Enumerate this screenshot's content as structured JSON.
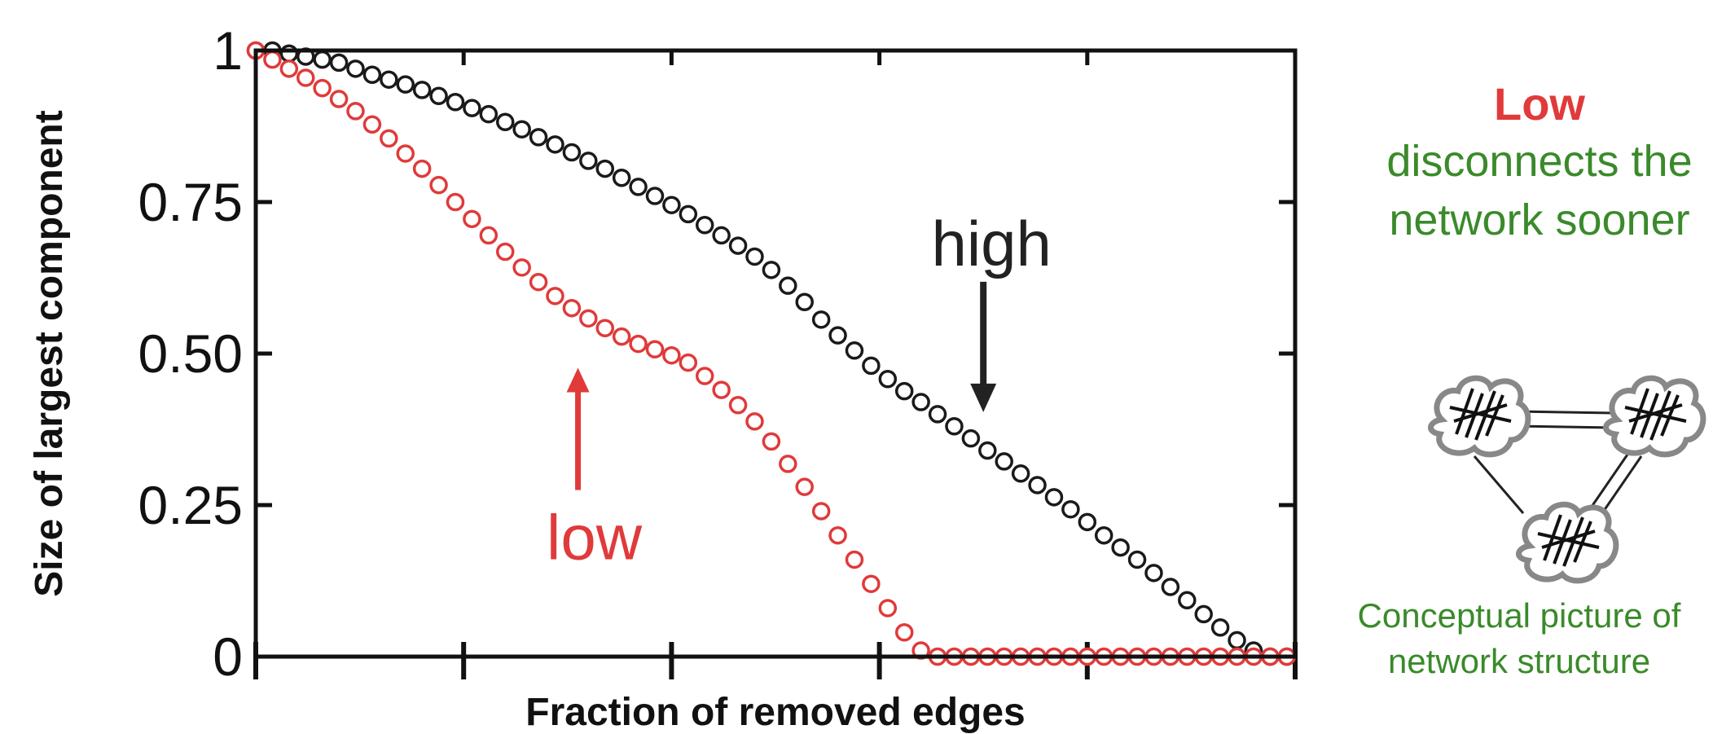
{
  "chart_data": {
    "type": "scatter",
    "xlabel": "Fraction of removed edges",
    "ylabel": "Size of largest component",
    "xlim": [
      0,
      1
    ],
    "ylim": [
      0,
      1
    ],
    "y_tick_labels": [
      "0",
      "0.25",
      "0.50",
      "0.75",
      "1"
    ],
    "y_ticks": [
      0,
      0.25,
      0.5,
      0.75,
      1
    ],
    "x_ticks": [
      0,
      0.2,
      0.4,
      0.6,
      0.8,
      1
    ],
    "x_tick_labels_shown": false,
    "grid": false,
    "marker": "open-circle",
    "series": [
      {
        "name": "high",
        "color": "#1a1a1a",
        "x": [
          0,
          0.016,
          0.032,
          0.048,
          0.064,
          0.08,
          0.096,
          0.112,
          0.128,
          0.144,
          0.16,
          0.176,
          0.192,
          0.208,
          0.224,
          0.24,
          0.256,
          0.272,
          0.288,
          0.304,
          0.32,
          0.336,
          0.352,
          0.368,
          0.384,
          0.4,
          0.416,
          0.432,
          0.448,
          0.464,
          0.48,
          0.496,
          0.512,
          0.528,
          0.544,
          0.56,
          0.576,
          0.592,
          0.608,
          0.624,
          0.64,
          0.656,
          0.672,
          0.688,
          0.704,
          0.72,
          0.736,
          0.752,
          0.768,
          0.784,
          0.8,
          0.816,
          0.832,
          0.848,
          0.864,
          0.88,
          0.896,
          0.912,
          0.928,
          0.944,
          0.96,
          0.976,
          0.992
        ],
        "y": [
          1,
          1,
          0.995,
          0.99,
          0.985,
          0.98,
          0.97,
          0.96,
          0.952,
          0.944,
          0.935,
          0.925,
          0.915,
          0.905,
          0.895,
          0.882,
          0.87,
          0.857,
          0.845,
          0.832,
          0.818,
          0.805,
          0.79,
          0.775,
          0.76,
          0.745,
          0.73,
          0.712,
          0.695,
          0.678,
          0.66,
          0.638,
          0.612,
          0.585,
          0.556,
          0.53,
          0.505,
          0.48,
          0.458,
          0.438,
          0.42,
          0.4,
          0.38,
          0.36,
          0.34,
          0.322,
          0.302,
          0.283,
          0.263,
          0.243,
          0.222,
          0.2,
          0.18,
          0.16,
          0.138,
          0.115,
          0.093,
          0.07,
          0.048,
          0.027,
          0.01,
          0,
          0
        ]
      },
      {
        "name": "low",
        "color": "#e03a3a",
        "x": [
          0,
          0.016,
          0.032,
          0.048,
          0.064,
          0.08,
          0.096,
          0.112,
          0.128,
          0.144,
          0.16,
          0.176,
          0.192,
          0.208,
          0.224,
          0.24,
          0.256,
          0.272,
          0.288,
          0.304,
          0.32,
          0.336,
          0.352,
          0.368,
          0.384,
          0.4,
          0.416,
          0.432,
          0.448,
          0.464,
          0.48,
          0.496,
          0.512,
          0.528,
          0.544,
          0.56,
          0.576,
          0.592,
          0.608,
          0.624,
          0.64,
          0.656,
          0.672,
          0.688,
          0.704,
          0.72,
          0.736,
          0.752,
          0.768,
          0.784,
          0.8,
          0.816,
          0.832,
          0.848,
          0.864,
          0.88,
          0.896,
          0.912,
          0.928,
          0.944,
          0.96,
          0.976,
          0.992
        ],
        "y": [
          1,
          0.985,
          0.97,
          0.955,
          0.938,
          0.92,
          0.9,
          0.878,
          0.855,
          0.83,
          0.805,
          0.778,
          0.75,
          0.722,
          0.695,
          0.668,
          0.642,
          0.618,
          0.595,
          0.575,
          0.558,
          0.542,
          0.528,
          0.516,
          0.507,
          0.497,
          0.485,
          0.463,
          0.44,
          0.415,
          0.388,
          0.355,
          0.318,
          0.28,
          0.24,
          0.2,
          0.16,
          0.12,
          0.08,
          0.04,
          0.01,
          0,
          0,
          0,
          0,
          0,
          0,
          0,
          0,
          0,
          0,
          0,
          0,
          0,
          0,
          0,
          0,
          0,
          0,
          0,
          0,
          0,
          0
        ]
      }
    ],
    "annotations": [
      {
        "text": "high",
        "color": "#222222",
        "arrow": "down",
        "x": 0.7,
        "y": 0.39
      },
      {
        "text": "low",
        "color": "#e03a3a",
        "arrow": "up",
        "x": 0.31,
        "y": 0.49
      }
    ]
  },
  "side_panel": {
    "heading": "Low",
    "heading_color": "#e03a3a",
    "subtext": "disconnects the network sooner",
    "subtext_color": "#3a8a2a",
    "caption": "Conceptual picture of network structure",
    "caption_color": "#3a8a2a",
    "illustration": "network-clusters-icon"
  }
}
